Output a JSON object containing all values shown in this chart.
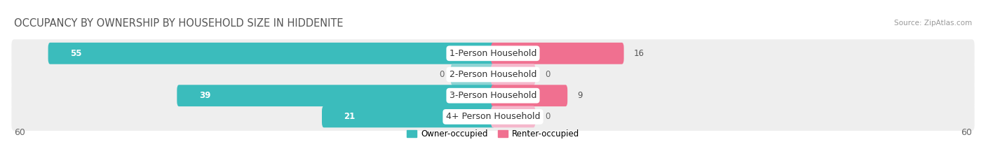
{
  "title": "OCCUPANCY BY OWNERSHIP BY HOUSEHOLD SIZE IN HIDDENITE",
  "source": "Source: ZipAtlas.com",
  "categories": [
    "1-Person Household",
    "2-Person Household",
    "3-Person Household",
    "4+ Person Household"
  ],
  "owner_values": [
    55,
    0,
    39,
    21
  ],
  "renter_values": [
    16,
    0,
    9,
    0
  ],
  "owner_color": "#3BBCBC",
  "renter_color": "#F07090",
  "owner_color_light": "#8ED4D4",
  "renter_color_light": "#F5B8CC",
  "row_bg_color": "#eeeeee",
  "max_val": 60,
  "zero_stub": 5,
  "x_axis_label_left": "60",
  "x_axis_label_right": "60",
  "legend_owner": "Owner-occupied",
  "legend_renter": "Renter-occupied",
  "title_fontsize": 10.5,
  "label_fontsize": 8.5,
  "cat_fontsize": 9,
  "tick_fontsize": 9
}
